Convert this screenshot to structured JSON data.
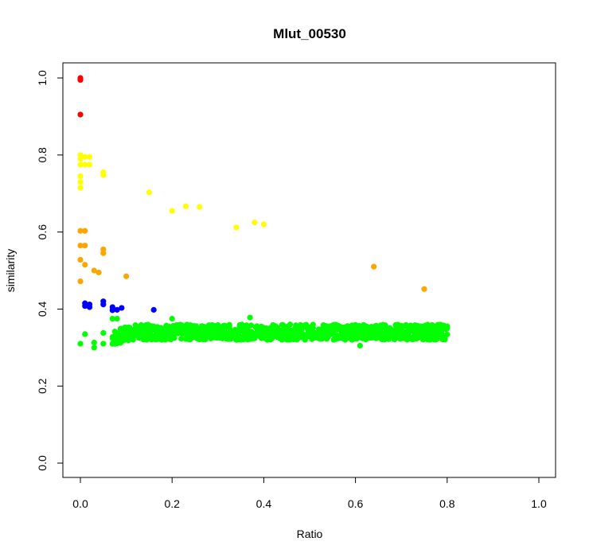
{
  "chart_data": {
    "type": "scatter",
    "title": "Mlut_00530",
    "xlabel": "Ratio",
    "ylabel": "similarity",
    "xlim": [
      0,
      1.0
    ],
    "ylim": [
      0,
      1.0
    ],
    "xticks": [
      "0.0",
      "0.2",
      "0.4",
      "0.6",
      "0.8",
      "1.0"
    ],
    "yticks": [
      "0.0",
      "0.2",
      "0.4",
      "0.6",
      "0.8",
      "1.0"
    ],
    "grid": false,
    "legend": "none",
    "series": [
      {
        "color": "#ff0000",
        "points": [
          [
            0,
            0.995
          ],
          [
            0,
            0.998
          ],
          [
            0,
            1.0
          ],
          [
            0,
            0.997
          ],
          [
            0,
            0.905
          ]
        ]
      },
      {
        "color": "#ffff00",
        "points": [
          [
            0,
            0.8
          ],
          [
            0,
            0.79
          ],
          [
            0,
            0.775
          ],
          [
            0,
            0.745
          ],
          [
            0,
            0.73
          ],
          [
            0,
            0.715
          ],
          [
            0.01,
            0.795
          ],
          [
            0.01,
            0.775
          ],
          [
            0.02,
            0.795
          ],
          [
            0.02,
            0.775
          ],
          [
            0.05,
            0.755
          ],
          [
            0.05,
            0.748
          ],
          [
            0.15,
            0.703
          ],
          [
            0.2,
            0.655
          ],
          [
            0.23,
            0.667
          ],
          [
            0.26,
            0.665
          ],
          [
            0.34,
            0.612
          ],
          [
            0.38,
            0.625
          ],
          [
            0.4,
            0.62
          ]
        ]
      },
      {
        "color": "#ffa500",
        "points": [
          [
            0,
            0.603
          ],
          [
            0,
            0.565
          ],
          [
            0,
            0.528
          ],
          [
            0,
            0.472
          ],
          [
            0.01,
            0.603
          ],
          [
            0.01,
            0.565
          ],
          [
            0.01,
            0.515
          ],
          [
            0.03,
            0.5
          ],
          [
            0.04,
            0.495
          ],
          [
            0.05,
            0.555
          ],
          [
            0.05,
            0.545
          ],
          [
            0.1,
            0.485
          ],
          [
            0.64,
            0.51
          ],
          [
            0.75,
            0.452
          ]
        ]
      },
      {
        "color": "#0000ff",
        "points": [
          [
            0.01,
            0.415
          ],
          [
            0.01,
            0.408
          ],
          [
            0.02,
            0.412
          ],
          [
            0.02,
            0.405
          ],
          [
            0.05,
            0.42
          ],
          [
            0.05,
            0.412
          ],
          [
            0.07,
            0.405
          ],
          [
            0.07,
            0.397
          ],
          [
            0.08,
            0.398
          ],
          [
            0.09,
            0.403
          ],
          [
            0.16,
            0.398
          ]
        ]
      },
      {
        "color": "#00ff00",
        "band": {
          "x_start": 0.07,
          "x_end": 0.8,
          "step": 0.0025,
          "y_center": 0.34,
          "y_spread": 0.02,
          "y_start_center": 0.325
        },
        "points": [
          [
            0,
            0.31
          ],
          [
            0.01,
            0.335
          ],
          [
            0.03,
            0.3
          ],
          [
            0.03,
            0.313
          ],
          [
            0.05,
            0.31
          ],
          [
            0.05,
            0.338
          ],
          [
            0.07,
            0.375
          ],
          [
            0.08,
            0.375
          ],
          [
            0.2,
            0.375
          ],
          [
            0.37,
            0.378
          ],
          [
            0.61,
            0.305
          ]
        ]
      }
    ]
  }
}
